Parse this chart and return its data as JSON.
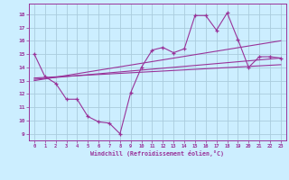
{
  "xlabel": "Windchill (Refroidissement éolien,°C)",
  "bg_color": "#cceeff",
  "grid_color": "#aaccdd",
  "line_color": "#993399",
  "xlim": [
    -0.5,
    23.5
  ],
  "ylim": [
    8.5,
    18.8
  ],
  "yticks": [
    9,
    10,
    11,
    12,
    13,
    14,
    15,
    16,
    17,
    18
  ],
  "xticks": [
    0,
    1,
    2,
    3,
    4,
    5,
    6,
    7,
    8,
    9,
    10,
    11,
    12,
    13,
    14,
    15,
    16,
    17,
    18,
    19,
    20,
    21,
    22,
    23
  ],
  "series": [
    {
      "x": [
        0,
        1,
        2,
        3,
        4,
        5,
        6,
        7,
        8,
        9,
        10,
        11,
        12,
        13,
        14,
        15,
        16,
        17,
        18,
        19,
        20,
        21,
        22,
        23
      ],
      "y": [
        15.0,
        13.3,
        12.8,
        11.6,
        11.6,
        10.3,
        9.9,
        9.8,
        9.0,
        12.1,
        14.0,
        15.3,
        15.5,
        15.1,
        15.4,
        17.9,
        17.9,
        16.8,
        18.1,
        16.1,
        14.0,
        14.8,
        14.8,
        14.7
      ]
    },
    {
      "x": [
        0,
        23
      ],
      "y": [
        13.2,
        14.2
      ]
    },
    {
      "x": [
        0,
        23
      ],
      "y": [
        13.0,
        16.0
      ]
    },
    {
      "x": [
        0,
        23
      ],
      "y": [
        13.1,
        14.7
      ]
    }
  ]
}
